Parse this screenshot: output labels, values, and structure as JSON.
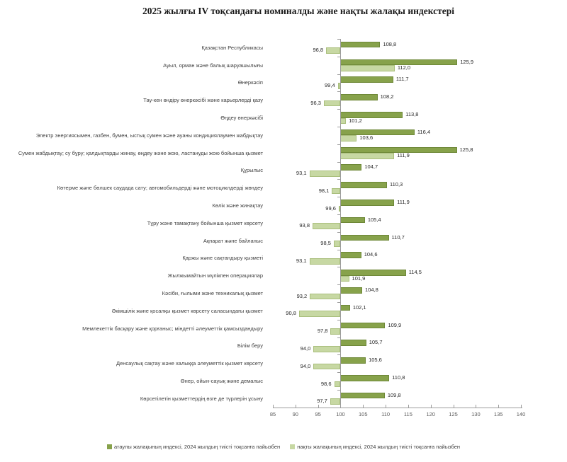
{
  "title": "2025 жылғы IV тоқсандағы номиналды және нақты жалақы индекстері",
  "colors": {
    "nominal_bar": "#87a24b",
    "real_bar": "#c7d8a3",
    "axis": "#9c9c9c",
    "label_text": "#404040",
    "value_text": "#262626"
  },
  "legend": [
    {
      "label": "атаулы жалақының индексі, 2024 жылдың тиісті тоқсанға пайызбен",
      "color": "#87a24b"
    },
    {
      "label": "нақты жалақының индексі, 2024 жылдың тиісті тоқсанға пайызбен",
      "color": "#c7d8a3"
    }
  ],
  "chart_data": {
    "type": "bar",
    "orientation": "horizontal",
    "title": "2025 жылғы IV тоқсандағы номиналды және нақты жалақы индекстері",
    "baseline": 100,
    "xlim": [
      85,
      140
    ],
    "xticks": [
      85,
      90,
      95,
      100,
      105,
      110,
      115,
      120,
      125,
      130,
      135,
      140
    ],
    "grid": false,
    "legend_position": "bottom",
    "decimal_separator": ",",
    "categories": [
      "Қазақстан Республикасы",
      "Ауыл, орман және балық шаруашылығы",
      "Өнеркәсіп",
      "Тау-кен өндіру өнеркәсібі және карьерлерді қазу",
      "Өңдеу өнеркәсібі",
      "Электр энергиясымен, газбен, бумен, ыстық  сумен және ауаны кондициялаумен жабдықтау",
      "Сумен жабдықтау; су бұру; қалдықтарды жинау, өңдеу және жою, ластануды жою бойынша қызмет",
      "Құрылыс",
      "Көтерме және бөлшек  саудада сату; автомобильдерді және мотоциклдерді жөндеу",
      "Көлік және жинақтау",
      "Тұру және тамақтану бойынша қызмет көрсету",
      "Ақпарат және байланыс",
      "Қаржы және сақтандыру қызметі",
      "Жылжымайтын  мүлікпен операциялар",
      "Кәсіби, ғылыми және техникалық қызмет",
      "Әкімшілік және қосалқы  қызмет көрсету саласындағы қызмет",
      "Мемлекеттік басқару және қорғаныс; міндетті әлеуметтік қамсыздандыру",
      "Білім беру",
      "Денсаулық сақтау және халыққа әлеуметтік қызмет көрсету",
      "Өнер, ойын-сауық және демалыс",
      "Көрсетілетін қызметтердің өзге де түрлерін ұсыну"
    ],
    "series": [
      {
        "name": "атаулы жалақының индексі, 2024 жылдың тиісті тоқсанға пайызбен",
        "values": [
          108.8,
          125.9,
          111.7,
          108.2,
          113.8,
          116.4,
          125.8,
          104.7,
          110.3,
          111.9,
          105.4,
          110.7,
          104.6,
          114.5,
          104.8,
          102.1,
          109.9,
          105.7,
          105.6,
          110.8,
          109.8
        ]
      },
      {
        "name": "нақты жалақының индексі, 2024 жылдың тиісті тоқсанға пайызбен",
        "values": [
          96.8,
          112.0,
          99.4,
          96.3,
          101.2,
          103.6,
          111.9,
          93.1,
          98.1,
          99.6,
          93.8,
          98.5,
          93.1,
          101.9,
          93.2,
          90.8,
          97.8,
          94.0,
          94.0,
          98.6,
          97.7
        ]
      }
    ]
  }
}
